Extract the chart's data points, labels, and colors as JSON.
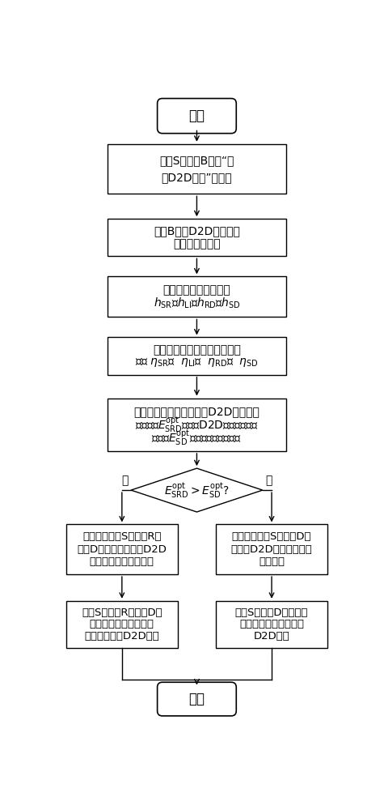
{
  "bg_color": "#ffffff",
  "line_color": "#000000",
  "text_color": "#000000",
  "font_size": 10,
  "start_text": "开始",
  "end_text": "结束",
  "box1_line1": "终端S向基站B发送“进",
  "box1_line2": "行D2D通信”的请求",
  "box2_line1": "基站B为该D2D链路确定",
  "box2_line2": "一个全双工中继",
  "box3_line1": "基站获得信道状态信息",
  "box3_line2": "$h_{\\mathrm{SR}}$、$h_{\\mathrm{LI}}$、$h_{\\mathrm{RD}}$、$h_{\\mathrm{SD}}$",
  "box4_line1": "基站根据获得的信道状态信息",
  "box4_line2": "计算 $\\eta_{\\mathrm{SR}}$、  $\\eta_{\\mathrm{LI}}$、  $\\eta_{\\mathrm{RD}}$、  $\\eta_{\\mathrm{SD}}$",
  "box5_line1": "基站分别计算中继辅助的D2D链路最大",
  "box5_line2": "能量效率$E^{\\mathrm{opt}}_{\\mathrm{SRD}}$和直迚D2D链路的最大能",
  "box5_line3": "量效率$E^{\\mathrm{opt}}_{\\mathrm{SD}}$，以及最优发射功率",
  "diamond_text": "$E^{\\mathrm{opt}}_{\\mathrm{SRD}}>E^{\\mathrm{opt}}_{\\mathrm{SD}}$?",
  "yes_label": "是",
  "no_label": "否",
  "box_left1_line1": "基站通知终端S、中继R和",
  "box_left1_line2": "终端D进行中继辅助的D2D",
  "box_left1_line3": "通信以及最优发射功率",
  "box_right1_line1": "基站通知终端S和终端D进",
  "box_right1_line2": "行直迚D2D通信以及最优",
  "box_right1_line3": "发射功率",
  "box_left2_line1": "终端S、中继R、终端D根",
  "box_left2_line2": "据接收到的控制信息进",
  "box_left2_line3": "行中继辅助的D2D通信",
  "box_right2_line1": "终端S、终端D根据接收",
  "box_right2_line2": "到的控制信息进行直迚",
  "box_right2_line3": "D2D通信"
}
